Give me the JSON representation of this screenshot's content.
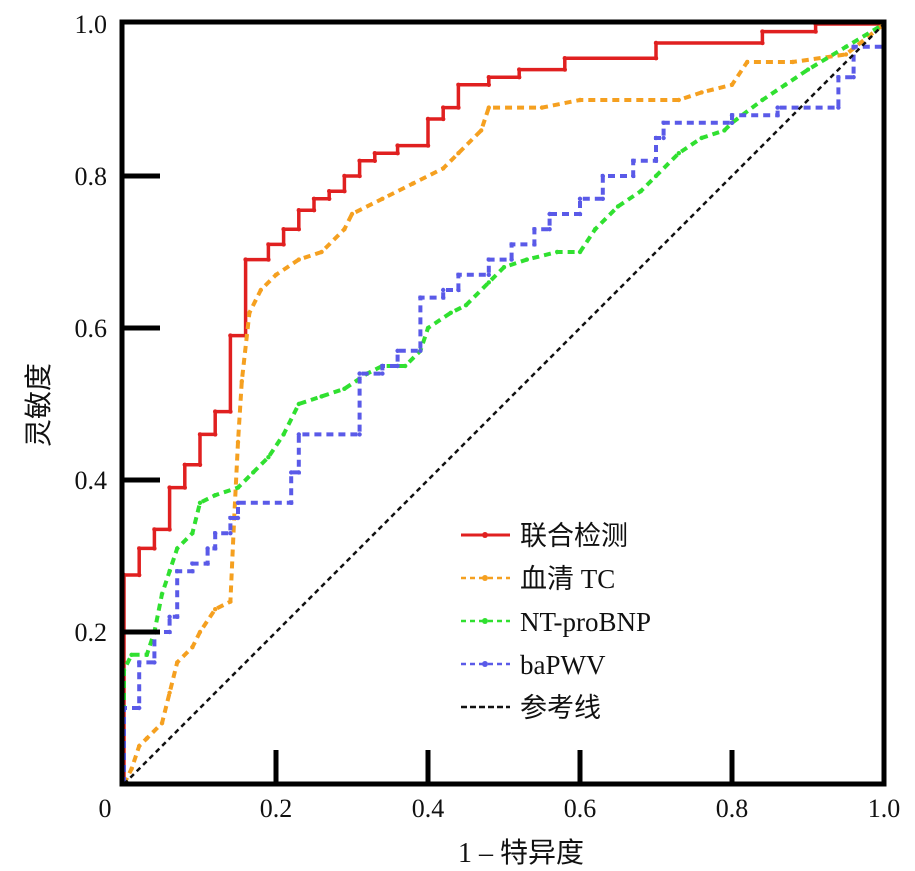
{
  "chart_data": {
    "type": "line",
    "title": "",
    "xlabel": "1 – 特异度",
    "ylabel": "灵敏度",
    "xlim": [
      0,
      1
    ],
    "ylim": [
      0,
      1
    ],
    "x_ticks": [
      "0.2",
      "0.4",
      "0.6",
      "0.8",
      "1.0"
    ],
    "y_ticks": [
      "0.2",
      "0.4",
      "0.6",
      "0.8",
      "1.0"
    ],
    "origin_label": "0",
    "grid": false,
    "legend_position": "bottom-right",
    "series": [
      {
        "name": "联合检测",
        "color": "#e02020",
        "style": "solid",
        "points": [
          [
            0,
            0
          ],
          [
            0,
            0.16
          ],
          [
            0,
            0.275
          ],
          [
            0.02,
            0.275
          ],
          [
            0.02,
            0.31
          ],
          [
            0.04,
            0.31
          ],
          [
            0.04,
            0.335
          ],
          [
            0.06,
            0.335
          ],
          [
            0.06,
            0.39
          ],
          [
            0.08,
            0.39
          ],
          [
            0.08,
            0.42
          ],
          [
            0.1,
            0.42
          ],
          [
            0.1,
            0.46
          ],
          [
            0.12,
            0.46
          ],
          [
            0.12,
            0.49
          ],
          [
            0.14,
            0.49
          ],
          [
            0.14,
            0.59
          ],
          [
            0.16,
            0.59
          ],
          [
            0.16,
            0.69
          ],
          [
            0.19,
            0.69
          ],
          [
            0.19,
            0.71
          ],
          [
            0.21,
            0.71
          ],
          [
            0.21,
            0.73
          ],
          [
            0.23,
            0.73
          ],
          [
            0.23,
            0.755
          ],
          [
            0.25,
            0.755
          ],
          [
            0.25,
            0.77
          ],
          [
            0.27,
            0.77
          ],
          [
            0.27,
            0.78
          ],
          [
            0.29,
            0.78
          ],
          [
            0.29,
            0.8
          ],
          [
            0.31,
            0.8
          ],
          [
            0.31,
            0.82
          ],
          [
            0.33,
            0.82
          ],
          [
            0.33,
            0.83
          ],
          [
            0.36,
            0.83
          ],
          [
            0.36,
            0.84
          ],
          [
            0.4,
            0.84
          ],
          [
            0.4,
            0.875
          ],
          [
            0.42,
            0.875
          ],
          [
            0.42,
            0.89
          ],
          [
            0.44,
            0.89
          ],
          [
            0.44,
            0.92
          ],
          [
            0.48,
            0.92
          ],
          [
            0.48,
            0.93
          ],
          [
            0.52,
            0.93
          ],
          [
            0.52,
            0.94
          ],
          [
            0.58,
            0.94
          ],
          [
            0.58,
            0.955
          ],
          [
            0.7,
            0.955
          ],
          [
            0.7,
            0.975
          ],
          [
            0.84,
            0.975
          ],
          [
            0.84,
            0.99
          ],
          [
            0.91,
            0.99
          ],
          [
            0.91,
            1
          ],
          [
            1,
            1
          ]
        ]
      },
      {
        "name": "血清 TC",
        "color": "#f5a020",
        "style": "dashed",
        "points": [
          [
            0,
            0
          ],
          [
            0.01,
            0.02
          ],
          [
            0.02,
            0.05
          ],
          [
            0.03,
            0.06
          ],
          [
            0.05,
            0.08
          ],
          [
            0.06,
            0.12
          ],
          [
            0.07,
            0.16
          ],
          [
            0.09,
            0.18
          ],
          [
            0.1,
            0.2
          ],
          [
            0.12,
            0.23
          ],
          [
            0.14,
            0.24
          ],
          [
            0.145,
            0.35
          ],
          [
            0.15,
            0.45
          ],
          [
            0.155,
            0.53
          ],
          [
            0.165,
            0.62
          ],
          [
            0.18,
            0.65
          ],
          [
            0.2,
            0.67
          ],
          [
            0.23,
            0.69
          ],
          [
            0.26,
            0.7
          ],
          [
            0.29,
            0.73
          ],
          [
            0.3,
            0.75
          ],
          [
            0.34,
            0.77
          ],
          [
            0.38,
            0.79
          ],
          [
            0.42,
            0.81
          ],
          [
            0.44,
            0.83
          ],
          [
            0.47,
            0.86
          ],
          [
            0.48,
            0.89
          ],
          [
            0.55,
            0.89
          ],
          [
            0.6,
            0.9
          ],
          [
            0.73,
            0.9
          ],
          [
            0.76,
            0.91
          ],
          [
            0.8,
            0.92
          ],
          [
            0.82,
            0.95
          ],
          [
            0.88,
            0.95
          ],
          [
            0.95,
            0.96
          ],
          [
            1,
            1
          ]
        ]
      },
      {
        "name": "NT-proBNP",
        "color": "#30e030",
        "style": "dashed",
        "points": [
          [
            0,
            0
          ],
          [
            0,
            0.15
          ],
          [
            0.01,
            0.17
          ],
          [
            0.03,
            0.17
          ],
          [
            0.04,
            0.2
          ],
          [
            0.05,
            0.25
          ],
          [
            0.06,
            0.28
          ],
          [
            0.07,
            0.31
          ],
          [
            0.09,
            0.33
          ],
          [
            0.1,
            0.37
          ],
          [
            0.12,
            0.38
          ],
          [
            0.15,
            0.39
          ],
          [
            0.17,
            0.41
          ],
          [
            0.19,
            0.43
          ],
          [
            0.21,
            0.46
          ],
          [
            0.23,
            0.5
          ],
          [
            0.26,
            0.51
          ],
          [
            0.29,
            0.52
          ],
          [
            0.32,
            0.54
          ],
          [
            0.34,
            0.55
          ],
          [
            0.37,
            0.55
          ],
          [
            0.39,
            0.57
          ],
          [
            0.4,
            0.6
          ],
          [
            0.43,
            0.62
          ],
          [
            0.45,
            0.63
          ],
          [
            0.48,
            0.66
          ],
          [
            0.5,
            0.68
          ],
          [
            0.53,
            0.69
          ],
          [
            0.57,
            0.7
          ],
          [
            0.6,
            0.7
          ],
          [
            0.62,
            0.73
          ],
          [
            0.65,
            0.76
          ],
          [
            0.68,
            0.78
          ],
          [
            0.7,
            0.8
          ],
          [
            0.73,
            0.83
          ],
          [
            0.76,
            0.85
          ],
          [
            0.79,
            0.86
          ],
          [
            0.8,
            0.87
          ],
          [
            0.84,
            0.9
          ],
          [
            0.87,
            0.92
          ],
          [
            0.9,
            0.94
          ],
          [
            0.95,
            0.97
          ],
          [
            1,
            1
          ]
        ]
      },
      {
        "name": "baPWV",
        "color": "#5a5ae8",
        "style": "dashed",
        "points": [
          [
            0,
            0
          ],
          [
            0,
            0.1
          ],
          [
            0.02,
            0.1
          ],
          [
            0.02,
            0.16
          ],
          [
            0.04,
            0.16
          ],
          [
            0.04,
            0.2
          ],
          [
            0.06,
            0.2
          ],
          [
            0.06,
            0.22
          ],
          [
            0.07,
            0.22
          ],
          [
            0.07,
            0.28
          ],
          [
            0.09,
            0.28
          ],
          [
            0.09,
            0.29
          ],
          [
            0.11,
            0.29
          ],
          [
            0.11,
            0.31
          ],
          [
            0.12,
            0.31
          ],
          [
            0.12,
            0.33
          ],
          [
            0.14,
            0.33
          ],
          [
            0.14,
            0.35
          ],
          [
            0.15,
            0.35
          ],
          [
            0.15,
            0.37
          ],
          [
            0.22,
            0.37
          ],
          [
            0.22,
            0.41
          ],
          [
            0.23,
            0.41
          ],
          [
            0.23,
            0.46
          ],
          [
            0.31,
            0.46
          ],
          [
            0.31,
            0.54
          ],
          [
            0.34,
            0.54
          ],
          [
            0.34,
            0.55
          ],
          [
            0.36,
            0.55
          ],
          [
            0.36,
            0.57
          ],
          [
            0.39,
            0.57
          ],
          [
            0.39,
            0.64
          ],
          [
            0.42,
            0.64
          ],
          [
            0.42,
            0.65
          ],
          [
            0.44,
            0.65
          ],
          [
            0.44,
            0.67
          ],
          [
            0.48,
            0.67
          ],
          [
            0.48,
            0.69
          ],
          [
            0.51,
            0.69
          ],
          [
            0.51,
            0.71
          ],
          [
            0.54,
            0.71
          ],
          [
            0.54,
            0.73
          ],
          [
            0.56,
            0.73
          ],
          [
            0.56,
            0.75
          ],
          [
            0.6,
            0.75
          ],
          [
            0.6,
            0.77
          ],
          [
            0.63,
            0.77
          ],
          [
            0.63,
            0.8
          ],
          [
            0.67,
            0.8
          ],
          [
            0.67,
            0.82
          ],
          [
            0.7,
            0.82
          ],
          [
            0.7,
            0.85
          ],
          [
            0.71,
            0.85
          ],
          [
            0.71,
            0.87
          ],
          [
            0.8,
            0.87
          ],
          [
            0.8,
            0.88
          ],
          [
            0.86,
            0.88
          ],
          [
            0.86,
            0.89
          ],
          [
            0.94,
            0.89
          ],
          [
            0.94,
            0.93
          ],
          [
            0.96,
            0.93
          ],
          [
            0.96,
            0.97
          ],
          [
            1,
            0.97
          ],
          [
            1,
            1
          ]
        ]
      },
      {
        "name": "参考线",
        "color": "#111111",
        "style": "dotted",
        "points": [
          [
            0,
            0
          ],
          [
            1,
            1
          ]
        ]
      }
    ]
  }
}
